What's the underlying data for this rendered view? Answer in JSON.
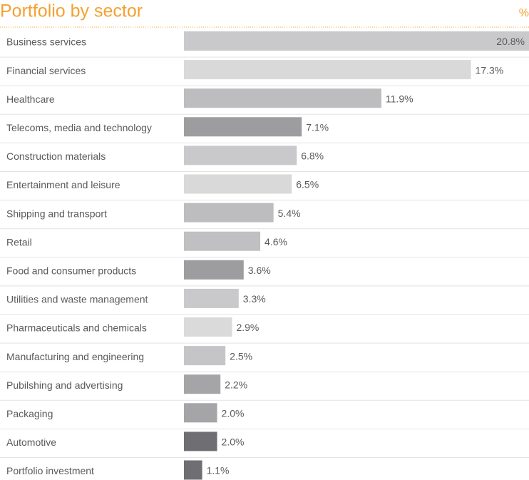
{
  "chart_data": {
    "type": "bar",
    "orientation": "horizontal",
    "title": "Portfolio by sector",
    "unit": "%",
    "categories": [
      "Business services",
      "Financial services",
      "Healthcare",
      "Telecoms, media and technology",
      "Construction materials",
      "Entertainment and leisure",
      "Shipping and transport",
      "Retail",
      "Food and consumer products",
      "Utilities and waste management",
      "Pharmaceuticals and chemicals",
      "Manufacturing and engineering",
      "Pubilshing and advertising",
      "Packaging",
      "Automotive",
      "Portfolio investment"
    ],
    "values": [
      20.8,
      17.3,
      11.9,
      7.1,
      6.8,
      6.5,
      5.4,
      4.6,
      3.6,
      3.3,
      2.9,
      2.5,
      2.2,
      2.0,
      2.0,
      1.1
    ],
    "value_labels": [
      "20.8%",
      "17.3%",
      "11.9%",
      "7.1%",
      "6.8%",
      "6.5%",
      "5.4%",
      "4.6%",
      "3.6%",
      "3.3%",
      "2.9%",
      "2.5%",
      "2.2%",
      "2.0%",
      "2.0%",
      "1.1%"
    ],
    "colors": [
      "#c9c9cb",
      "#d9d9da",
      "#bdbdbf",
      "#9d9c9f",
      "#c9c9cb",
      "#d9d9da",
      "#bdbdbf",
      "#c0c0c2",
      "#9d9c9f",
      "#c9c9cb",
      "#dadadb",
      "#c5c5c7",
      "#a5a4a7",
      "#a5a4a7",
      "#6f6e72",
      "#6f6e72"
    ],
    "title_color": "#f5a031"
  }
}
